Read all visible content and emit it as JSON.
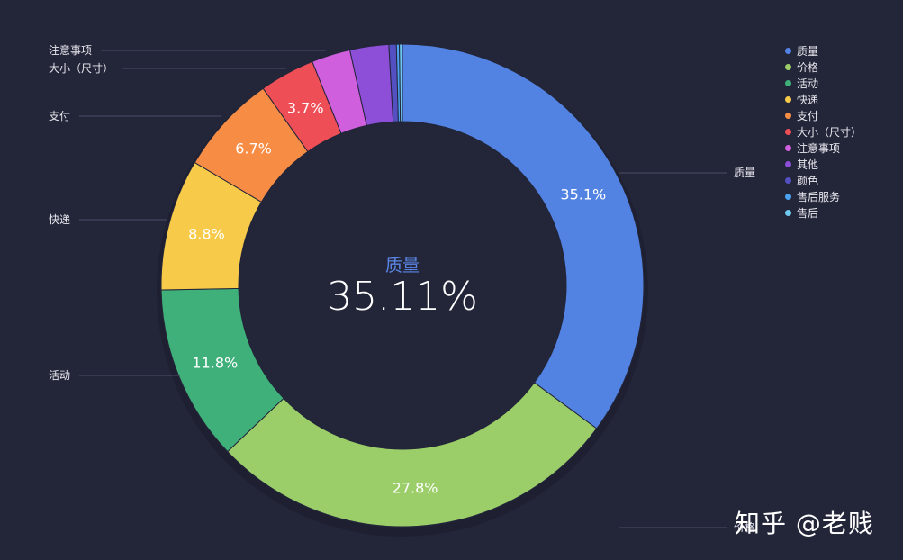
{
  "chart_data": {
    "type": "pie",
    "variant": "donut",
    "slices": [
      {
        "name": "质量",
        "value": 35.11,
        "label": "35.1%",
        "color": "#5283e2"
      },
      {
        "name": "价格",
        "value": 27.8,
        "label": "27.8%",
        "color": "#9bce69"
      },
      {
        "name": "活动",
        "value": 11.8,
        "label": "11.8%",
        "color": "#3fb07a"
      },
      {
        "name": "快递",
        "value": 8.8,
        "label": "8.8%",
        "color": "#f7ca4a"
      },
      {
        "name": "支付",
        "value": 6.7,
        "label": "6.7%",
        "color": "#f78d45"
      },
      {
        "name": "大小（尺寸）",
        "value": 3.7,
        "label": "3.7%",
        "color": "#ee4e56"
      },
      {
        "name": "注意事项",
        "value": 2.6,
        "label": "",
        "color": "#cf5fdd"
      },
      {
        "name": "其他",
        "value": 2.6,
        "label": "",
        "color": "#8d4fd8"
      },
      {
        "name": "颜色",
        "value": 0.5,
        "label": "",
        "color": "#5450c2"
      },
      {
        "name": "售后服务",
        "value": 0.2,
        "label": "",
        "color": "#4aa2f0"
      },
      {
        "name": "售后",
        "value": 0.2,
        "label": "",
        "color": "#6ec8f0"
      }
    ],
    "outer_labels": [
      "质量",
      "价格",
      "活动",
      "快递",
      "支付",
      "大小（尺寸）",
      "注意事项"
    ],
    "legend_position": "top-right",
    "center": {
      "title": "质量",
      "value": "35.11%"
    }
  },
  "watermark": "知乎 @老贱"
}
